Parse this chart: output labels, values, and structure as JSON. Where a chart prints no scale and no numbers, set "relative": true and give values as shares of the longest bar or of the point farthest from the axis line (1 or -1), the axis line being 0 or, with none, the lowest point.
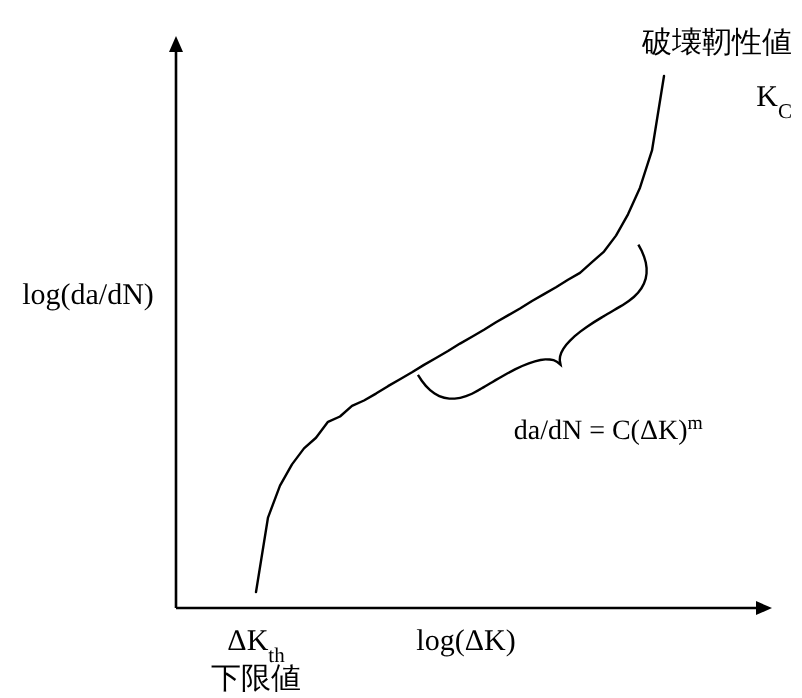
{
  "chart_data": {
    "type": "line",
    "relative": true,
    "xlabel": "log(ΔK)",
    "ylabel": "log(da/dN)",
    "categories": [
      null,
      null,
      null,
      null,
      null,
      null,
      null,
      null,
      null,
      null,
      null,
      null,
      null,
      null,
      null,
      null,
      null,
      null,
      null,
      null,
      null,
      null,
      null,
      null,
      null,
      null,
      null,
      null,
      null,
      null,
      null,
      null,
      null,
      null,
      null
    ],
    "series": [
      {
        "color": "#000000",
        "values": [
          0.03,
          0.17,
          0.23,
          0.27,
          0.3,
          0.32,
          0.35,
          0.36,
          0.38,
          0.39,
          0.403,
          0.417,
          0.43,
          0.443,
          0.457,
          0.47,
          0.483,
          0.497,
          0.51,
          0.523,
          0.537,
          0.55,
          0.563,
          0.577,
          0.59,
          0.603,
          0.617,
          0.63,
          0.65,
          0.67,
          0.7,
          0.74,
          0.79,
          0.86,
          1
        ]
      }
    ],
    "annotations": [
      "破壊靭性値\nK$_{C}$",
      "da/dN = C(ΔK)$^{m}$",
      "ΔK$_{th}$\n下限値"
    ]
  }
}
